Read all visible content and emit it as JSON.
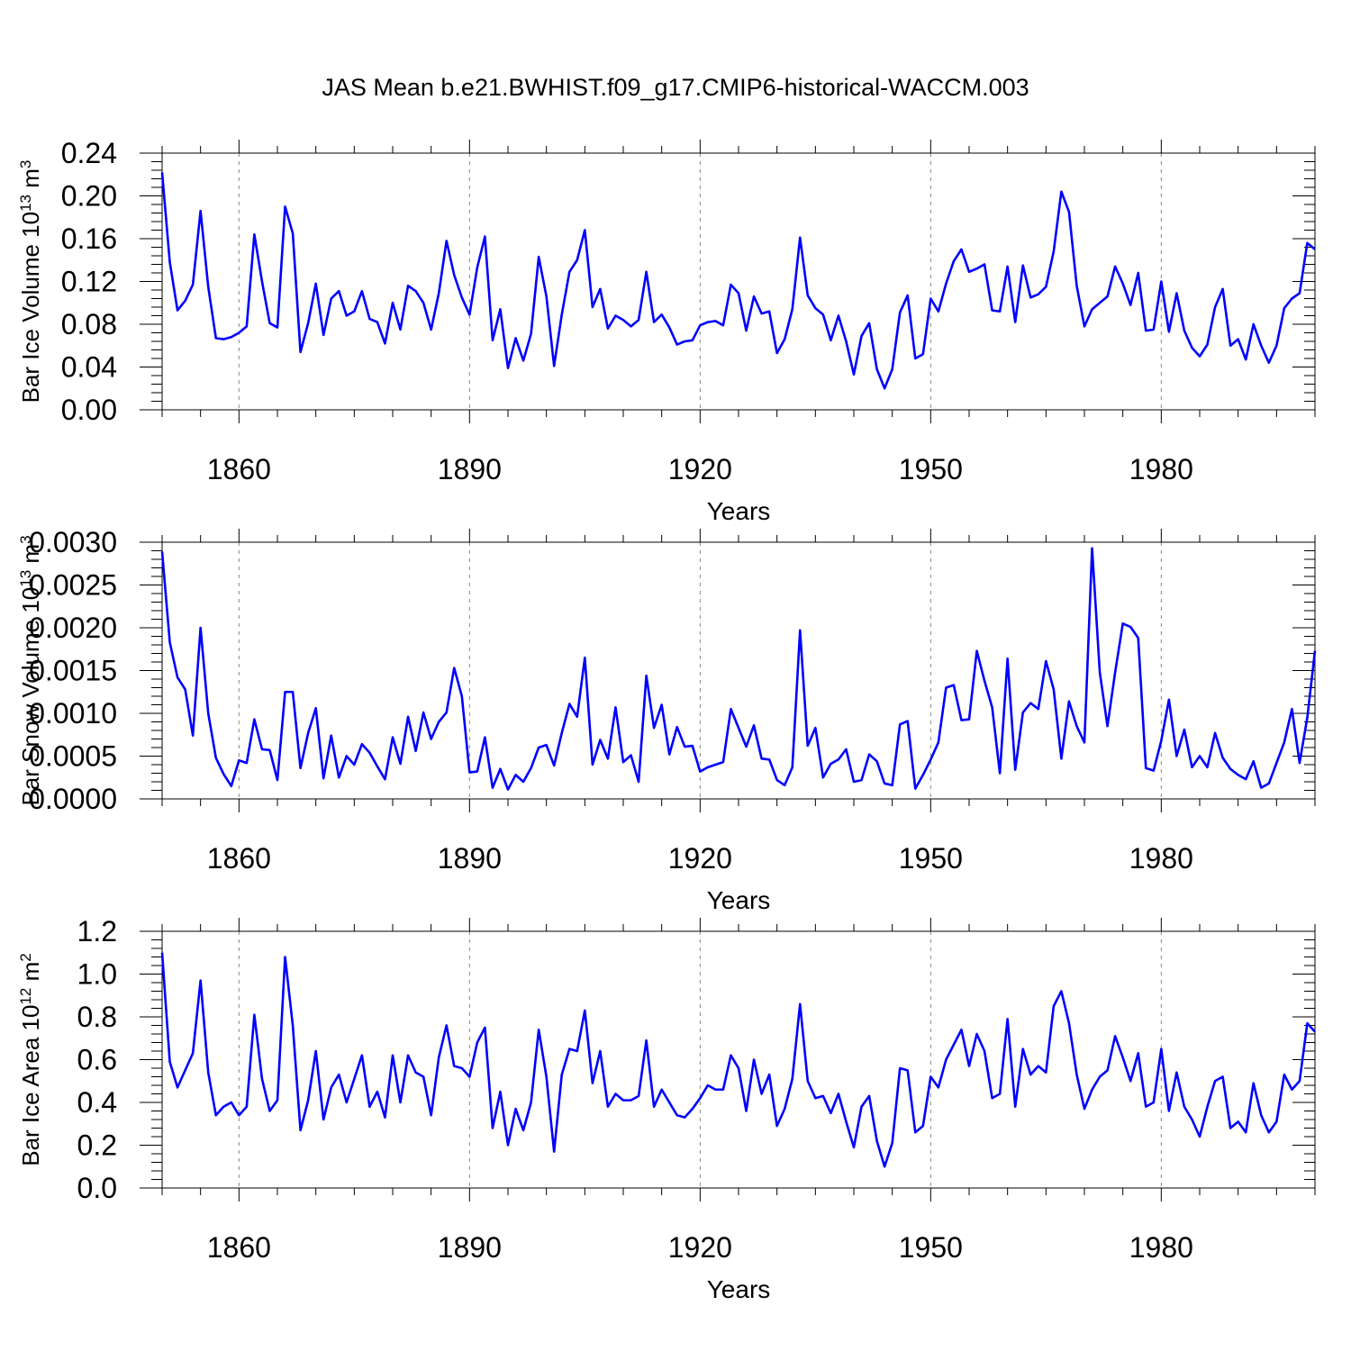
{
  "figure_title": "JAS Mean b.e21.BWHIST.f09_g17.CMIP6-historical-WACCM.003",
  "colors": {
    "line": "#0000ff",
    "axis": "#000000",
    "grid": "#888888",
    "background": "#ffffff"
  },
  "chart_data": [
    {
      "type": "line",
      "title": "",
      "xlabel": "Years",
      "ylabel": {
        "main": "Bar Ice Volume 10",
        "exponent": "13",
        "unit": " m",
        "unit_exponent": "3"
      },
      "xlim": [
        1850,
        2000
      ],
      "ylim": [
        0.0,
        0.24
      ],
      "xticks": [
        "1860",
        "1890",
        "1920",
        "1950",
        "1980"
      ],
      "xtick_values": [
        1860,
        1890,
        1920,
        1950,
        1980
      ],
      "yticks": [
        "0.00",
        "0.04",
        "0.08",
        "0.12",
        "0.16",
        "0.20",
        "0.24"
      ],
      "ytick_values": [
        0.0,
        0.04,
        0.08,
        0.12,
        0.16,
        0.2,
        0.24
      ],
      "grid": "vertical-dashed",
      "x_start": 1850,
      "series": [
        {
          "name": "Bar Ice Volume",
          "values": [
            0.222,
            0.138,
            0.093,
            0.102,
            0.117,
            0.186,
            0.115,
            0.067,
            0.066,
            0.068,
            0.072,
            0.078,
            0.164,
            0.12,
            0.081,
            0.077,
            0.19,
            0.165,
            0.054,
            0.081,
            0.118,
            0.07,
            0.104,
            0.111,
            0.088,
            0.092,
            0.111,
            0.085,
            0.082,
            0.062,
            0.1,
            0.075,
            0.116,
            0.111,
            0.1,
            0.075,
            0.109,
            0.158,
            0.126,
            0.105,
            0.089,
            0.133,
            0.162,
            0.065,
            0.094,
            0.039,
            0.067,
            0.046,
            0.071,
            0.143,
            0.106,
            0.041,
            0.089,
            0.129,
            0.14,
            0.168,
            0.096,
            0.113,
            0.076,
            0.088,
            0.084,
            0.078,
            0.084,
            0.129,
            0.082,
            0.089,
            0.077,
            0.061,
            0.064,
            0.065,
            0.079,
            0.082,
            0.083,
            0.079,
            0.117,
            0.109,
            0.074,
            0.106,
            0.09,
            0.092,
            0.053,
            0.066,
            0.094,
            0.161,
            0.107,
            0.095,
            0.089,
            0.065,
            0.088,
            0.064,
            0.033,
            0.069,
            0.081,
            0.038,
            0.02,
            0.038,
            0.091,
            0.107,
            0.048,
            0.052,
            0.104,
            0.092,
            0.118,
            0.139,
            0.15,
            0.129,
            0.132,
            0.136,
            0.093,
            0.092,
            0.134,
            0.082,
            0.135,
            0.105,
            0.108,
            0.115,
            0.148,
            0.204,
            0.185,
            0.116,
            0.078,
            0.094,
            0.1,
            0.106,
            0.134,
            0.118,
            0.098,
            0.128,
            0.074,
            0.075,
            0.12,
            0.073,
            0.109,
            0.074,
            0.058,
            0.05,
            0.061,
            0.096,
            0.113,
            0.06,
            0.066,
            0.047,
            0.08,
            0.06,
            0.044,
            0.06,
            0.095,
            0.104,
            0.109,
            0.156,
            0.15
          ]
        }
      ]
    },
    {
      "type": "line",
      "title": "",
      "xlabel": "Years",
      "ylabel": {
        "main": "Bar Snow Volume 10",
        "exponent": "13",
        "unit": " m",
        "unit_exponent": "3"
      },
      "xlim": [
        1850,
        2000
      ],
      "ylim": [
        0.0,
        0.003
      ],
      "xticks": [
        "1860",
        "1890",
        "1920",
        "1950",
        "1980"
      ],
      "xtick_values": [
        1860,
        1890,
        1920,
        1950,
        1980
      ],
      "yticks": [
        "0.0000",
        "0.0005",
        "0.0010",
        "0.0015",
        "0.0020",
        "0.0025",
        "0.0030"
      ],
      "ytick_values": [
        0.0,
        0.0005,
        0.001,
        0.0015,
        0.002,
        0.0025,
        0.003
      ],
      "grid": "vertical-dashed",
      "x_start": 1850,
      "series": [
        {
          "name": "Bar Snow Volume",
          "values": [
            0.00289,
            0.00183,
            0.00142,
            0.00128,
            0.00074,
            0.002,
            0.001,
            0.00048,
            0.00029,
            0.00015,
            0.00045,
            0.00042,
            0.00093,
            0.00058,
            0.00057,
            0.00022,
            0.00125,
            0.00125,
            0.00036,
            0.00077,
            0.00106,
            0.00024,
            0.00074,
            0.00025,
            0.0005,
            0.0004,
            0.00064,
            0.00054,
            0.00038,
            0.00023,
            0.00072,
            0.00041,
            0.00096,
            0.00056,
            0.00101,
            0.0007,
            0.0009,
            0.00101,
            0.00153,
            0.0012,
            0.00031,
            0.00032,
            0.00072,
            0.00013,
            0.00035,
            0.00011,
            0.00028,
            0.0002,
            0.00036,
            0.0006,
            0.00063,
            0.00039,
            0.00077,
            0.00111,
            0.00096,
            0.00165,
            0.0004,
            0.00069,
            0.00047,
            0.00107,
            0.00043,
            0.00051,
            0.0002,
            0.00144,
            0.00083,
            0.0011,
            0.00052,
            0.00084,
            0.00061,
            0.00062,
            0.00032,
            0.00037,
            0.0004,
            0.00043,
            0.00105,
            0.00083,
            0.00061,
            0.00086,
            0.00047,
            0.00046,
            0.00022,
            0.00016,
            0.00037,
            0.00197,
            0.00062,
            0.00083,
            0.00025,
            0.00041,
            0.00046,
            0.00058,
            0.0002,
            0.00022,
            0.00052,
            0.00044,
            0.00018,
            0.00016,
            0.00087,
            0.00091,
            0.00012,
            0.00028,
            0.00046,
            0.00066,
            0.0013,
            0.00133,
            0.00092,
            0.00093,
            0.00173,
            0.00138,
            0.00107,
            0.0003,
            0.00164,
            0.00034,
            0.00101,
            0.00112,
            0.00105,
            0.00161,
            0.00128,
            0.00047,
            0.00114,
            0.00085,
            0.00066,
            0.00293,
            0.00148,
            0.00085,
            0.00148,
            0.00205,
            0.00201,
            0.00188,
            0.00036,
            0.00033,
            0.00068,
            0.00116,
            0.0005,
            0.00081,
            0.00037,
            0.0005,
            0.00037,
            0.00077,
            0.00048,
            0.00035,
            0.00028,
            0.00023,
            0.00044,
            0.00013,
            0.00018,
            0.00042,
            0.00066,
            0.00105,
            0.00042,
            0.00095,
            0.00173
          ]
        }
      ]
    },
    {
      "type": "line",
      "title": "",
      "xlabel": "Years",
      "ylabel": {
        "main": "Bar Ice Area 10",
        "exponent": "12",
        "unit": " m",
        "unit_exponent": "2"
      },
      "xlim": [
        1850,
        2000
      ],
      "ylim": [
        0.0,
        1.2
      ],
      "xticks": [
        "1860",
        "1890",
        "1920",
        "1950",
        "1980"
      ],
      "xtick_values": [
        1860,
        1890,
        1920,
        1950,
        1980
      ],
      "yticks": [
        "0.0",
        "0.2",
        "0.4",
        "0.6",
        "0.8",
        "1.0",
        "1.2"
      ],
      "ytick_values": [
        0.0,
        0.2,
        0.4,
        0.6,
        0.8,
        1.0,
        1.2
      ],
      "grid": "vertical-dashed",
      "x_start": 1850,
      "series": [
        {
          "name": "Bar Ice Area",
          "values": [
            1.1,
            0.59,
            0.47,
            0.55,
            0.63,
            0.97,
            0.54,
            0.34,
            0.38,
            0.4,
            0.34,
            0.38,
            0.81,
            0.51,
            0.36,
            0.41,
            1.08,
            0.76,
            0.27,
            0.41,
            0.64,
            0.32,
            0.47,
            0.53,
            0.4,
            0.51,
            0.62,
            0.38,
            0.45,
            0.33,
            0.62,
            0.4,
            0.62,
            0.54,
            0.52,
            0.34,
            0.61,
            0.76,
            0.57,
            0.56,
            0.52,
            0.68,
            0.75,
            0.28,
            0.45,
            0.2,
            0.37,
            0.27,
            0.4,
            0.74,
            0.52,
            0.17,
            0.53,
            0.65,
            0.64,
            0.83,
            0.49,
            0.64,
            0.38,
            0.44,
            0.41,
            0.41,
            0.43,
            0.69,
            0.38,
            0.46,
            0.4,
            0.34,
            0.33,
            0.37,
            0.42,
            0.48,
            0.46,
            0.46,
            0.62,
            0.56,
            0.36,
            0.6,
            0.44,
            0.53,
            0.29,
            0.37,
            0.51,
            0.86,
            0.5,
            0.42,
            0.43,
            0.35,
            0.44,
            0.31,
            0.19,
            0.38,
            0.43,
            0.22,
            0.1,
            0.21,
            0.56,
            0.55,
            0.26,
            0.29,
            0.52,
            0.47,
            0.6,
            0.67,
            0.74,
            0.57,
            0.72,
            0.64,
            0.42,
            0.44,
            0.79,
            0.38,
            0.65,
            0.53,
            0.57,
            0.54,
            0.85,
            0.92,
            0.77,
            0.53,
            0.37,
            0.46,
            0.52,
            0.55,
            0.71,
            0.61,
            0.5,
            0.63,
            0.38,
            0.4,
            0.65,
            0.36,
            0.54,
            0.38,
            0.32,
            0.24,
            0.38,
            0.5,
            0.52,
            0.28,
            0.31,
            0.26,
            0.49,
            0.34,
            0.26,
            0.31,
            0.53,
            0.46,
            0.5,
            0.77,
            0.73
          ]
        }
      ]
    }
  ]
}
